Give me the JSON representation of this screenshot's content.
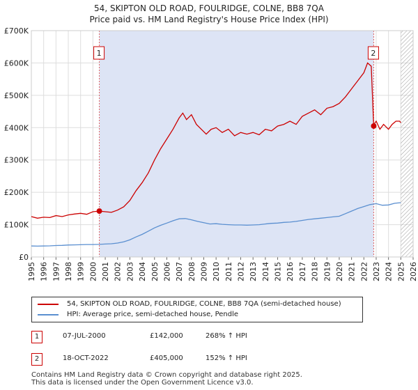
{
  "title_line1": "54, SKIPTON OLD ROAD, FOULRIDGE, COLNE, BB8 7QA",
  "title_line2": "Price paid vs. HM Land Registry's House Price Index (HPI)",
  "chart_data": {
    "type": "line",
    "ylim": [
      0,
      700000
    ],
    "xlim": [
      1995,
      2026
    ],
    "y_ticks": [
      {
        "value": 0,
        "label": "£0"
      },
      {
        "value": 100000,
        "label": "£100K"
      },
      {
        "value": 200000,
        "label": "£200K"
      },
      {
        "value": 300000,
        "label": "£300K"
      },
      {
        "value": 400000,
        "label": "£400K"
      },
      {
        "value": 500000,
        "label": "£500K"
      },
      {
        "value": 600000,
        "label": "£600K"
      },
      {
        "value": 700000,
        "label": "£700K"
      }
    ],
    "x_ticks": [
      "1995",
      "1996",
      "1997",
      "1998",
      "1999",
      "2000",
      "2001",
      "2002",
      "2003",
      "2004",
      "2005",
      "2006",
      "2007",
      "2008",
      "2009",
      "2010",
      "2011",
      "2012",
      "2013",
      "2014",
      "2015",
      "2016",
      "2017",
      "2018",
      "2019",
      "2020",
      "2021",
      "2022",
      "2023",
      "2024",
      "2025",
      "2026"
    ],
    "grid": true,
    "shaded_periods": [
      [
        2000.52,
        2022.8
      ]
    ],
    "future_hatch_from": 2025.0,
    "series": [
      {
        "name": "54, SKIPTON OLD ROAD, FOULRIDGE, COLNE, BB8 7QA (semi-detached house)",
        "color": "#cc0000",
        "x": [
          1995.0,
          1995.5,
          1996.0,
          1996.5,
          1997.0,
          1997.5,
          1998.0,
          1998.5,
          1999.0,
          1999.5,
          2000.0,
          2000.52,
          2001.0,
          2001.5,
          2002.0,
          2002.5,
          2003.0,
          2003.5,
          2004.0,
          2004.5,
          2005.0,
          2005.5,
          2006.0,
          2006.5,
          2007.0,
          2007.3,
          2007.6,
          2008.0,
          2008.4,
          2008.8,
          2009.2,
          2009.6,
          2010.0,
          2010.5,
          2011.0,
          2011.5,
          2012.0,
          2012.5,
          2013.0,
          2013.5,
          2014.0,
          2014.5,
          2015.0,
          2015.5,
          2016.0,
          2016.5,
          2017.0,
          2017.5,
          2018.0,
          2018.5,
          2019.0,
          2019.5,
          2020.0,
          2020.5,
          2021.0,
          2021.5,
          2022.0,
          2022.3,
          2022.6,
          2022.8,
          2022.9,
          2023.0,
          2023.3,
          2023.6,
          2024.0,
          2024.3,
          2024.6,
          2024.9,
          2025.0
        ],
        "y": [
          125000,
          120000,
          123000,
          122000,
          128000,
          125000,
          130000,
          133000,
          135000,
          132000,
          140000,
          142000,
          140000,
          138000,
          145000,
          155000,
          175000,
          205000,
          230000,
          260000,
          300000,
          335000,
          365000,
          395000,
          430000,
          445000,
          425000,
          440000,
          410000,
          395000,
          380000,
          395000,
          400000,
          385000,
          395000,
          375000,
          385000,
          380000,
          385000,
          378000,
          395000,
          390000,
          405000,
          410000,
          420000,
          410000,
          435000,
          445000,
          455000,
          440000,
          460000,
          465000,
          475000,
          495000,
          520000,
          545000,
          570000,
          600000,
          590000,
          405000,
          415000,
          420000,
          395000,
          410000,
          395000,
          410000,
          420000,
          420000,
          415000
        ]
      },
      {
        "name": "HPI: Average price, semi-detached house, Pendle",
        "color": "#5a8fd0",
        "x": [
          1995.0,
          1995.5,
          1996.0,
          1996.5,
          1997.0,
          1997.5,
          1998.0,
          1998.5,
          1999.0,
          1999.5,
          2000.0,
          2000.5,
          2001.0,
          2001.5,
          2002.0,
          2002.5,
          2003.0,
          2003.5,
          2004.0,
          2004.5,
          2005.0,
          2005.5,
          2006.0,
          2006.5,
          2007.0,
          2007.5,
          2008.0,
          2008.5,
          2009.0,
          2009.5,
          2010.0,
          2010.5,
          2011.0,
          2011.5,
          2012.0,
          2012.5,
          2013.0,
          2013.5,
          2014.0,
          2014.5,
          2015.0,
          2015.5,
          2016.0,
          2016.5,
          2017.0,
          2017.5,
          2018.0,
          2018.5,
          2019.0,
          2019.5,
          2020.0,
          2020.5,
          2021.0,
          2021.5,
          2022.0,
          2022.5,
          2023.0,
          2023.5,
          2024.0,
          2024.5,
          2025.0
        ],
        "y": [
          34000,
          33500,
          34000,
          34500,
          35500,
          36000,
          37000,
          37500,
          38000,
          38500,
          38500,
          39000,
          40000,
          41000,
          43000,
          47000,
          53000,
          62000,
          70000,
          80000,
          90000,
          98000,
          105000,
          112000,
          118000,
          119000,
          115000,
          110000,
          106000,
          102000,
          103000,
          101000,
          100000,
          99000,
          99000,
          98500,
          99000,
          100000,
          102000,
          104000,
          105000,
          107000,
          108000,
          110000,
          113000,
          116000,
          118000,
          120000,
          122000,
          124000,
          126000,
          134000,
          142000,
          150000,
          156000,
          162000,
          165000,
          160000,
          161000,
          166000,
          168000
        ]
      }
    ],
    "annotations": [
      {
        "label": "1",
        "x": 2000.52,
        "price": 142000
      },
      {
        "label": "2",
        "x": 2022.8,
        "price": 405000
      }
    ]
  },
  "legend": {
    "items": [
      {
        "label": "54, SKIPTON OLD ROAD, FOULRIDGE, COLNE, BB8 7QA (semi-detached house)",
        "color": "#cc0000"
      },
      {
        "label": "HPI: Average price, semi-detached house, Pendle",
        "color": "#5a8fd0"
      }
    ]
  },
  "transactions": [
    {
      "num": "1",
      "date": "07-JUL-2000",
      "price": "£142,000",
      "hpi": "268% ↑ HPI"
    },
    {
      "num": "2",
      "date": "18-OCT-2022",
      "price": "£405,000",
      "hpi": "152% ↑ HPI"
    }
  ],
  "footer": {
    "line1": "Contains HM Land Registry data © Crown copyright and database right 2025.",
    "line2": "This data is licensed under the Open Government Licence v3.0."
  }
}
